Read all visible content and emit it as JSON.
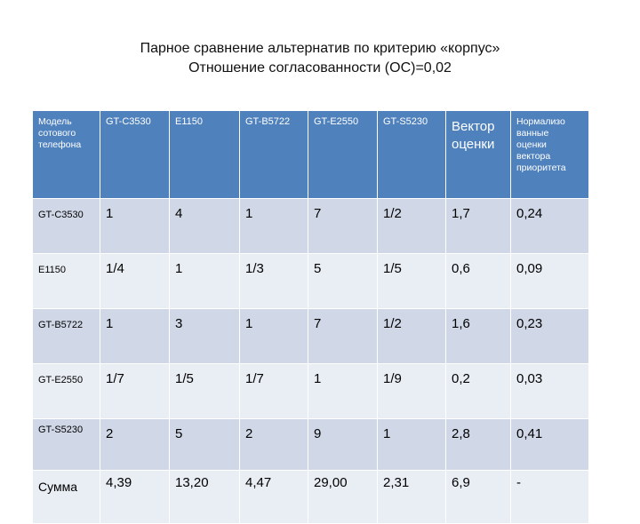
{
  "title": {
    "line1": "Парное сравнение альтернатив по критерию «корпус»",
    "line2": "Отношение согласованности (ОС)=0,02"
  },
  "table": {
    "headers": [
      "Модель сотового телефона",
      "GT-C3530",
      "E1150",
      "GT-B5722",
      "GT-E2550",
      "GT-S5230",
      "Вектор оценки",
      "Нормализованные оценки вектора приоритета"
    ],
    "header_lines": {
      "model": [
        "Модель",
        "сотового",
        "телефона"
      ],
      "vector": [
        "Вектор",
        "оценки"
      ],
      "normalized": [
        "Нормализо",
        "ванные",
        "оценки",
        "вектора",
        "приоритета"
      ]
    },
    "rows": [
      {
        "label": "GT-C3530",
        "values": [
          "1",
          "4",
          "1",
          "7",
          "1/2",
          "1,7",
          "0,24"
        ]
      },
      {
        "label": "E1150",
        "values": [
          "1/4",
          "1",
          "1/3",
          "5",
          "1/5",
          "0,6",
          "0,09"
        ]
      },
      {
        "label": "GT-B5722",
        "values": [
          "1",
          "3",
          "1",
          "7",
          "1/2",
          "1,6",
          "0,23"
        ]
      },
      {
        "label": "GT-E2550",
        "values": [
          "1/7",
          "1/5",
          "1/7",
          "1",
          "1/9",
          "0,2",
          "0,03"
        ]
      },
      {
        "label": "GT-S5230",
        "values": [
          "2",
          "5",
          "2",
          "9",
          "1",
          "2,8",
          "0,41"
        ]
      },
      {
        "label": "Сумма",
        "values": [
          "4,39",
          "13,20",
          "4,47",
          "29,00",
          "2,31",
          "6,9",
          "-"
        ]
      }
    ]
  },
  "colors": {
    "header_bg": "#4f81bd",
    "row_odd_bg": "#d0d8e8",
    "row_even_bg": "#e9edf4"
  }
}
